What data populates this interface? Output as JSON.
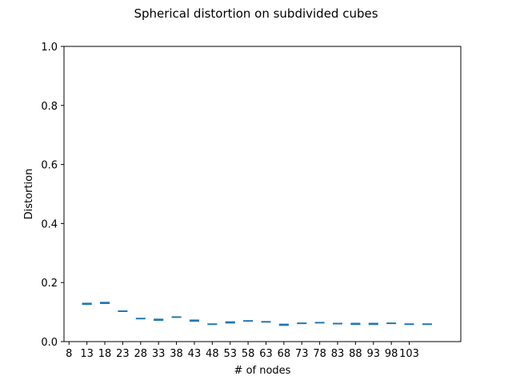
{
  "chart_data": {
    "type": "scatter",
    "marker": "horizontal-dash",
    "title": "Spherical distortion on subdivided cubes",
    "xlabel": "# of nodes",
    "ylabel": "Distortion",
    "xlim": [
      6.6,
      117.4
    ],
    "ylim": [
      0.0,
      1.0
    ],
    "xticks": [
      8,
      13,
      18,
      23,
      28,
      33,
      38,
      43,
      48,
      53,
      58,
      63,
      68,
      73,
      78,
      83,
      88,
      93,
      98,
      103
    ],
    "xtick_labels": [
      "8",
      "13",
      "18",
      "23",
      "28",
      "33",
      "38",
      "43",
      "48",
      "53",
      "58",
      "63",
      "68",
      "73",
      "78",
      "83",
      "88",
      "93",
      "98",
      "103"
    ],
    "yticks": [
      0.0,
      0.2,
      0.4,
      0.6,
      0.8,
      1.0
    ],
    "ytick_labels": [
      "0.0",
      "0.2",
      "0.4",
      "0.6",
      "0.8",
      "1.0"
    ],
    "grid": false,
    "series_color": "#1f77b4",
    "points": [
      {
        "x": 13,
        "y": [
          0.127,
          0.129
        ]
      },
      {
        "x": 18,
        "y": [
          0.13,
          0.132
        ]
      },
      {
        "x": 23,
        "y": [
          0.103
        ]
      },
      {
        "x": 28,
        "y": [
          0.078
        ]
      },
      {
        "x": 33,
        "y": [
          0.073,
          0.075
        ]
      },
      {
        "x": 38,
        "y": [
          0.083
        ]
      },
      {
        "x": 43,
        "y": [
          0.07,
          0.072
        ]
      },
      {
        "x": 48,
        "y": [
          0.059
        ]
      },
      {
        "x": 53,
        "y": [
          0.064,
          0.066
        ]
      },
      {
        "x": 58,
        "y": [
          0.07
        ]
      },
      {
        "x": 63,
        "y": [
          0.067
        ]
      },
      {
        "x": 68,
        "y": [
          0.056,
          0.058
        ]
      },
      {
        "x": 73,
        "y": [
          0.062
        ]
      },
      {
        "x": 78,
        "y": [
          0.064
        ]
      },
      {
        "x": 83,
        "y": [
          0.061
        ]
      },
      {
        "x": 88,
        "y": [
          0.059,
          0.061
        ]
      },
      {
        "x": 93,
        "y": [
          0.059,
          0.061
        ]
      },
      {
        "x": 98,
        "y": [
          0.062
        ]
      },
      {
        "x": 103,
        "y": [
          0.059
        ]
      },
      {
        "x": 108,
        "y": [
          0.059
        ]
      }
    ]
  }
}
